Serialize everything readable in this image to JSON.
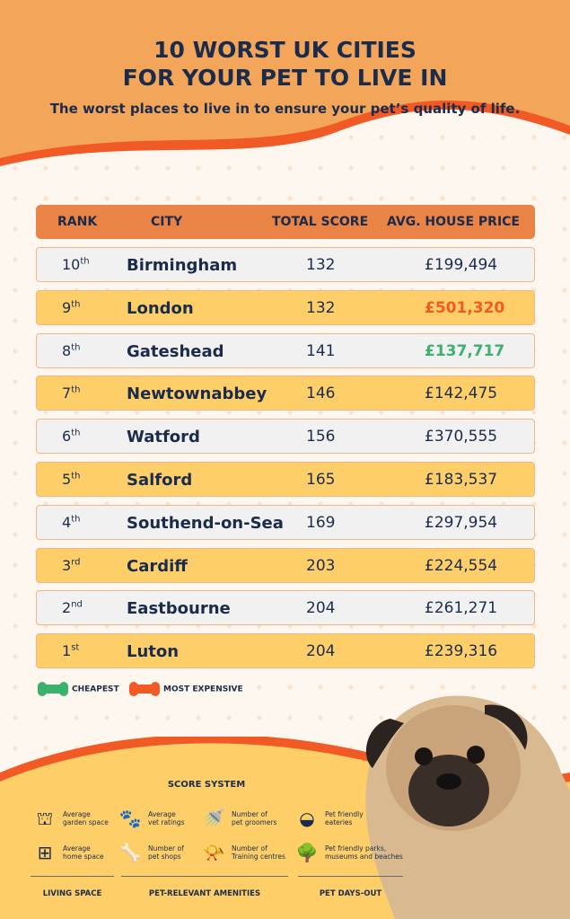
{
  "header": {
    "title_line1": "10 WORST UK CITIES",
    "title_line2": "FOR YOUR PET TO LIVE IN",
    "subtitle": "The worst places to live in to ensure your pet’s quality of life."
  },
  "table": {
    "columns": [
      "RANK",
      "CITY",
      "TOTAL SCORE",
      "AVG. HOUSE PRICE"
    ],
    "rows": [
      {
        "rank": "10",
        "suffix": "th",
        "city": "Birmingham",
        "score": "132",
        "price": "£199,494",
        "highlight": ""
      },
      {
        "rank": "9",
        "suffix": "th",
        "city": "London",
        "score": "132",
        "price": "£501,320",
        "highlight": "most-expensive"
      },
      {
        "rank": "8",
        "suffix": "th",
        "city": "Gateshead",
        "score": "141",
        "price": "£137,717",
        "highlight": "cheapest"
      },
      {
        "rank": "7",
        "suffix": "th",
        "city": "Newtownabbey",
        "score": "146",
        "price": "£142,475",
        "highlight": ""
      },
      {
        "rank": "6",
        "suffix": "th",
        "city": "Watford",
        "score": "156",
        "price": "£370,555",
        "highlight": ""
      },
      {
        "rank": "5",
        "suffix": "th",
        "city": "Salford",
        "score": "165",
        "price": "£183,537",
        "highlight": ""
      },
      {
        "rank": "4",
        "suffix": "th",
        "city": "Southend-on-Sea",
        "score": "169",
        "price": "£297,954",
        "highlight": ""
      },
      {
        "rank": "3",
        "suffix": "rd",
        "city": "Cardiff",
        "score": "203",
        "price": "£224,554",
        "highlight": ""
      },
      {
        "rank": "2",
        "suffix": "nd",
        "city": "Eastbourne",
        "score": "204",
        "price": "£261,271",
        "highlight": ""
      },
      {
        "rank": "1",
        "suffix": "st",
        "city": "Luton",
        "score": "204",
        "price": "£239,316",
        "highlight": ""
      }
    ]
  },
  "legend": {
    "cheapest": "CHEAPEST",
    "expensive": "MOST EXPENSIVE"
  },
  "score_system": {
    "title": "SCORE SYSTEM",
    "items": [
      {
        "icon": "garden-icon",
        "l1": "Average",
        "l2": "garden space"
      },
      {
        "icon": "paw-medical-icon",
        "l1": "Average",
        "l2": "vet ratings"
      },
      {
        "icon": "shower-icon",
        "l1": "Number of",
        "l2": "pet groomers"
      },
      {
        "icon": "pet-bowl-icon",
        "l1": "Pet friendly",
        "l2": "eateries"
      },
      {
        "icon": "floorplan-icon",
        "l1": "Average",
        "l2": "home space"
      },
      {
        "icon": "bone-icon",
        "l1": "Number of",
        "l2": "pet shops"
      },
      {
        "icon": "whistle-icon",
        "l1": "Number of",
        "l2": "Training centres"
      },
      {
        "icon": "trees-icon",
        "l1": "Pet friendly parks,",
        "l2": "museums and beaches"
      }
    ],
    "groups": [
      "LIVING SPACE",
      "PET-RELEVANT AMENITIES",
      "PET DAYS-OUT"
    ]
  },
  "colors": {
    "header": "#f3a65a",
    "accent": "#f15a24",
    "navy": "#1b2b4b",
    "cheapest": "#3ab26e",
    "expensive": "#f15a24",
    "row_yellow": "#fecf69",
    "row_grey": "#f1f1f1"
  }
}
